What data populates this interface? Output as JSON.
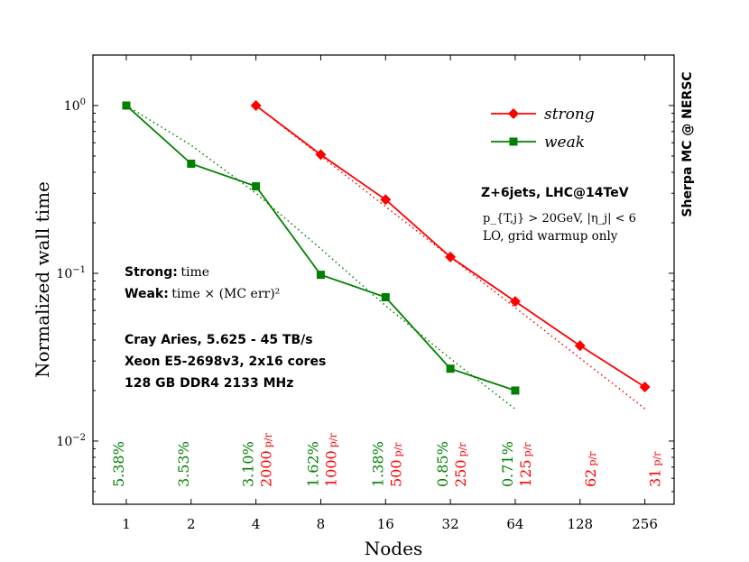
{
  "chart_data": {
    "type": "line",
    "xlabel": "Nodes",
    "ylabel": "Normalized wall time",
    "x_scale": "log2",
    "y_scale": "log10",
    "categories": [
      "1",
      "2",
      "4",
      "8",
      "16",
      "32",
      "64",
      "128",
      "256"
    ],
    "x": [
      1,
      2,
      4,
      8,
      16,
      32,
      64,
      128,
      256
    ],
    "xlim": [
      0.7,
      350
    ],
    "ylim": [
      0.0042,
      2.0
    ],
    "y_ticks": [
      {
        "value": 1.0,
        "base": "10",
        "exp": "0"
      },
      {
        "value": 0.1,
        "base": "10",
        "exp": "−1"
      },
      {
        "value": 0.01,
        "base": "10",
        "exp": "−2"
      }
    ],
    "right_label": "Sherpa MC @ NERSC",
    "series": [
      {
        "name": "strong",
        "color": "#ff0000",
        "marker": "diamond",
        "x": [
          4,
          8,
          16,
          32,
          64,
          128,
          256
        ],
        "values": [
          1.0,
          0.51,
          0.275,
          0.125,
          0.068,
          0.037,
          0.021
        ],
        "ideal_fit": {
          "x": [
            4,
            256
          ],
          "values": [
            1.0,
            0.0156
          ]
        }
      },
      {
        "name": "weak",
        "color": "#008000",
        "marker": "square",
        "x": [
          1,
          2,
          4,
          8,
          16,
          32,
          64
        ],
        "values": [
          1.0,
          0.45,
          0.33,
          0.098,
          0.072,
          0.027,
          0.02
        ],
        "ideal_fit": {
          "x": [
            1,
            2,
            4,
            8,
            16,
            32,
            64
          ],
          "values": [
            1.0,
            0.58,
            0.3,
            0.14,
            0.064,
            0.031,
            0.0155
          ]
        }
      }
    ],
    "process_annotation": {
      "title": "Z+6jets, LHC@14TeV",
      "cuts": "p_{T,j} > 20GeV, |η_j| < 6",
      "mode": "LO,  grid warmup only"
    },
    "method_annotation": {
      "strong_label": "Strong:",
      "strong_text": "time",
      "weak_label": "Weak:",
      "weak_text": "time × (MC err)²"
    },
    "hardware_annotation": [
      "Cray Aries, 5.625 - 45 TB/s",
      "Xeon E5-2698v3, 2x16 cores",
      "128 GB DDR4 2133 MHz"
    ],
    "weak_errors": [
      {
        "x": 1,
        "text": "5.38%"
      },
      {
        "x": 2,
        "text": "3.53%"
      },
      {
        "x": 4,
        "text": "3.10%"
      },
      {
        "x": 8,
        "text": "1.62%"
      },
      {
        "x": 16,
        "text": "1.38%"
      },
      {
        "x": 32,
        "text": "0.85%"
      },
      {
        "x": 64,
        "text": "0.71%"
      }
    ],
    "strong_rates": [
      {
        "x": 4,
        "num": "2000",
        "unit": "p/r"
      },
      {
        "x": 8,
        "num": "1000",
        "unit": "p/r"
      },
      {
        "x": 16,
        "num": "500",
        "unit": "p/r"
      },
      {
        "x": 32,
        "num": "250",
        "unit": "p/r"
      },
      {
        "x": 64,
        "num": "125",
        "unit": "p/r"
      },
      {
        "x": 128,
        "num": "62",
        "unit": "p/r"
      },
      {
        "x": 256,
        "num": "31",
        "unit": "p/r"
      }
    ]
  }
}
